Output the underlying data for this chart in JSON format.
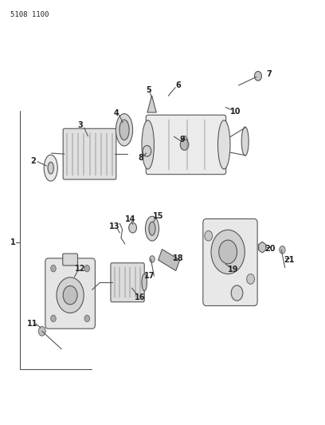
{
  "title_code": "5108 1100",
  "bg_color": "#ffffff",
  "line_color": "#555555",
  "text_color": "#222222",
  "fig_width": 4.08,
  "fig_height": 5.33,
  "dpi": 100
}
